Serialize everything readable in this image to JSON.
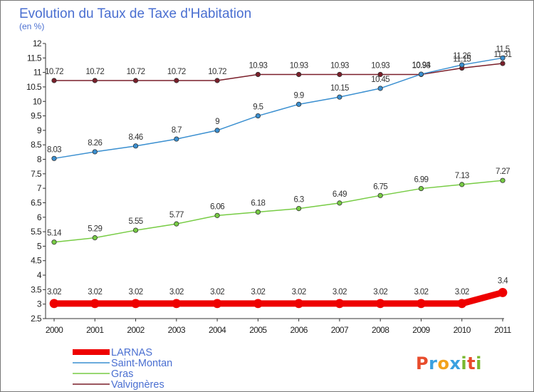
{
  "chart_data": {
    "type": "line",
    "title": "Evolution du Taux de Taxe d'Habitation",
    "subtitle": "(en %)",
    "x": [
      "2000",
      "2001",
      "2002",
      "2003",
      "2004",
      "2005",
      "2006",
      "2007",
      "2008",
      "2009",
      "2010",
      "2011"
    ],
    "ylim": [
      2.5,
      12
    ],
    "yticks": [
      "2.5",
      "3",
      "3.5",
      "4",
      "4.5",
      "5",
      "5.5",
      "6",
      "6.5",
      "7",
      "7.5",
      "8",
      "8.5",
      "9",
      "9.5",
      "10",
      "10.5",
      "11",
      "11.5",
      "12"
    ],
    "grid": false,
    "legend_position": "bottom-left",
    "series": [
      {
        "name": "LARNAS",
        "color": "#ee0000",
        "values": [
          3.02,
          3.02,
          3.02,
          3.02,
          3.02,
          3.02,
          3.02,
          3.02,
          3.02,
          3.02,
          3.02,
          3.4
        ],
        "labels": [
          "3.02",
          "3.02",
          "3.02",
          "3.02",
          "3.02",
          "3.02",
          "3.02",
          "3.02",
          "3.02",
          "3.02",
          "3.02",
          "3.4"
        ]
      },
      {
        "name": "Saint-Montan",
        "color": "#3a8fd0",
        "values": [
          8.03,
          8.26,
          8.46,
          8.7,
          9,
          9.5,
          9.9,
          10.15,
          10.45,
          10.94,
          11.26,
          11.5
        ],
        "labels": [
          "8.03",
          "8.26",
          "8.46",
          "8.7",
          "9",
          "9.5",
          "9.9",
          "10.15",
          "10.45",
          "10.94",
          "11.26",
          "11.5"
        ]
      },
      {
        "name": "Gras",
        "color": "#77cc44",
        "values": [
          5.14,
          5.29,
          5.55,
          5.77,
          6.06,
          6.18,
          6.3,
          6.49,
          6.75,
          6.99,
          7.13,
          7.27
        ],
        "labels": [
          "5.14",
          "5.29",
          "5.55",
          "5.77",
          "6.06",
          "6.18",
          "6.3",
          "6.49",
          "6.75",
          "6.99",
          "7.13",
          "7.27"
        ]
      },
      {
        "name": "Valvignères",
        "color": "#7a1f2a",
        "values": [
          10.72,
          10.72,
          10.72,
          10.72,
          10.72,
          10.93,
          10.93,
          10.93,
          10.93,
          10.93,
          11.15,
          11.31
        ],
        "labels": [
          "10.72",
          "10.72",
          "10.72",
          "10.72",
          "10.72",
          "10.93",
          "10.93",
          "10.93",
          "10.93",
          "10.93",
          "11.15",
          "11.31"
        ]
      }
    ]
  },
  "logo": {
    "text": "Proxiti",
    "letter_colors": [
      "#e84c2c",
      "#3aa0e0",
      "#f2a21c",
      "#3aa0e0",
      "#79b82f",
      "#e84c2c",
      "#79b82f"
    ]
  }
}
